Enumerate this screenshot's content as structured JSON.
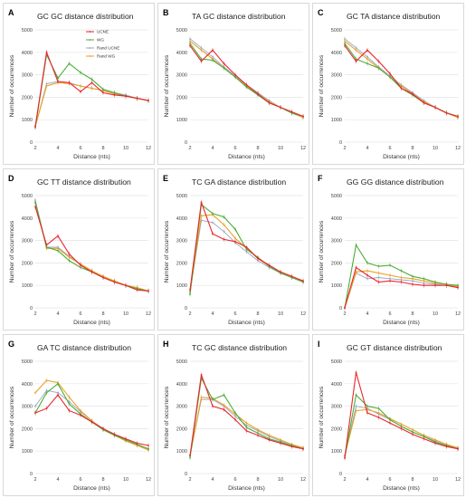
{
  "chart_data": [
    {
      "panel": "A",
      "type": "line",
      "title": "GC GC distance distribution",
      "xlabel": "Distance (nts)",
      "ylabel": "Number of occurrences",
      "xlim": [
        2,
        12
      ],
      "ylim": [
        0,
        5000
      ],
      "grid": true,
      "legend": "top-center",
      "x": [
        2,
        3,
        4,
        5,
        6,
        7,
        8,
        9,
        10,
        11,
        12
      ],
      "series": [
        {
          "name": "UCNE",
          "color": "#e8262d",
          "values": [
            700,
            4000,
            2700,
            2650,
            2250,
            2650,
            2200,
            2100,
            2050,
            1950,
            1850
          ]
        },
        {
          "name": "WG",
          "color": "#4cad3a",
          "values": [
            650,
            3900,
            2850,
            3500,
            3100,
            2800,
            2350,
            2200,
            2050,
            1950,
            1850
          ]
        },
        {
          "name": "Rand UCNE",
          "color": "#9aa5c3",
          "values": [
            700,
            2600,
            2700,
            2650,
            2500,
            2400,
            2300,
            2200,
            2100,
            1950,
            1850
          ]
        },
        {
          "name": "Rand WG",
          "color": "#e9a227",
          "values": [
            700,
            2500,
            2650,
            2600,
            2500,
            2400,
            2300,
            2150,
            2050,
            1950,
            1850
          ]
        }
      ]
    },
    {
      "panel": "B",
      "type": "line",
      "title": "TA GC distance distribution",
      "xlabel": "Distance (nts)",
      "ylabel": "Number of occurrences",
      "xlim": [
        2,
        12
      ],
      "ylim": [
        0,
        5000
      ],
      "grid": true,
      "x": [
        2,
        3,
        4,
        5,
        6,
        7,
        8,
        9,
        10,
        11,
        12
      ],
      "series": [
        {
          "name": "UCNE",
          "color": "#e8262d",
          "values": [
            4300,
            3600,
            4100,
            3500,
            3000,
            2550,
            2150,
            1750,
            1550,
            1350,
            1150
          ]
        },
        {
          "name": "WG",
          "color": "#4cad3a",
          "values": [
            4400,
            3700,
            3650,
            3300,
            2900,
            2450,
            2100,
            1750,
            1550,
            1300,
            1150
          ]
        },
        {
          "name": "Rand UCNE",
          "color": "#9aa5c3",
          "values": [
            4600,
            4200,
            3800,
            3350,
            2950,
            2550,
            2200,
            1850,
            1550,
            1300,
            1100
          ]
        },
        {
          "name": "Rand WG",
          "color": "#e9a227",
          "values": [
            4500,
            4100,
            3700,
            3300,
            2900,
            2500,
            2150,
            1800,
            1550,
            1300,
            1100
          ]
        }
      ]
    },
    {
      "panel": "C",
      "type": "line",
      "title": "GC TA distance distribution",
      "xlabel": "Distance (nts)",
      "ylabel": "Number of occurrences",
      "xlim": [
        2,
        12
      ],
      "ylim": [
        0,
        5000
      ],
      "grid": true,
      "x": [
        2,
        3,
        4,
        5,
        6,
        7,
        8,
        9,
        10,
        11,
        12
      ],
      "series": [
        {
          "name": "UCNE",
          "color": "#e8262d",
          "values": [
            4300,
            3600,
            4100,
            3600,
            3050,
            2400,
            2150,
            1750,
            1550,
            1300,
            1150
          ]
        },
        {
          "name": "WG",
          "color": "#4cad3a",
          "values": [
            4400,
            3700,
            3500,
            3300,
            2900,
            2400,
            2100,
            1750,
            1550,
            1300,
            1150
          ]
        },
        {
          "name": "Rand UCNE",
          "color": "#9aa5c3",
          "values": [
            4600,
            4200,
            3800,
            3350,
            2950,
            2550,
            2200,
            1850,
            1550,
            1300,
            1100
          ]
        },
        {
          "name": "Rand WG",
          "color": "#e9a227",
          "values": [
            4500,
            4100,
            3700,
            3300,
            2900,
            2500,
            2150,
            1800,
            1550,
            1300,
            1100
          ]
        }
      ]
    },
    {
      "panel": "D",
      "type": "line",
      "title": "GC TT distance distribution",
      "xlabel": "Distance (nts)",
      "ylabel": "Number of occurrences",
      "xlim": [
        2,
        12
      ],
      "ylim": [
        0,
        5000
      ],
      "grid": true,
      "x": [
        2,
        3,
        4,
        5,
        6,
        7,
        8,
        9,
        10,
        11,
        12
      ],
      "series": [
        {
          "name": "UCNE",
          "color": "#e8262d",
          "values": [
            4500,
            2800,
            3200,
            2400,
            1900,
            1600,
            1350,
            1150,
            1000,
            800,
            750
          ]
        },
        {
          "name": "WG",
          "color": "#4cad3a",
          "values": [
            4700,
            2700,
            2550,
            2100,
            1800,
            1600,
            1350,
            1150,
            1000,
            850,
            750
          ]
        },
        {
          "name": "Rand UCNE",
          "color": "#9aa5c3",
          "values": [
            4800,
            2700,
            2700,
            2300,
            1950,
            1650,
            1400,
            1200,
            1000,
            900,
            750
          ]
        },
        {
          "name": "Rand WG",
          "color": "#e9a227",
          "values": [
            4700,
            2650,
            2650,
            2250,
            1950,
            1650,
            1400,
            1200,
            1000,
            900,
            750
          ]
        }
      ]
    },
    {
      "panel": "E",
      "type": "line",
      "title": "TC GA distance distribution",
      "xlabel": "Distance (nts)",
      "ylabel": "Number of occurrences",
      "xlim": [
        2,
        12
      ],
      "ylim": [
        0,
        5000
      ],
      "grid": true,
      "x": [
        2,
        3,
        4,
        5,
        6,
        7,
        8,
        9,
        10,
        11,
        12
      ],
      "series": [
        {
          "name": "UCNE",
          "color": "#e8262d",
          "values": [
            800,
            4700,
            3300,
            3050,
            2950,
            2700,
            2200,
            1900,
            1600,
            1400,
            1200
          ]
        },
        {
          "name": "WG",
          "color": "#4cad3a",
          "values": [
            600,
            4600,
            4200,
            4050,
            3500,
            2600,
            2250,
            1850,
            1550,
            1350,
            1150
          ]
        },
        {
          "name": "Rand UCNE",
          "color": "#9aa5c3",
          "values": [
            700,
            3900,
            3800,
            3400,
            2900,
            2500,
            2100,
            1800,
            1550,
            1350,
            1150
          ]
        },
        {
          "name": "Rand WG",
          "color": "#e9a227",
          "values": [
            700,
            4100,
            4150,
            3700,
            3100,
            2650,
            2200,
            1850,
            1600,
            1400,
            1200
          ]
        }
      ]
    },
    {
      "panel": "F",
      "type": "line",
      "title": "GG GG distance distribution",
      "xlabel": "Distance (nts)",
      "ylabel": "Number of occurrences",
      "xlim": [
        2,
        12
      ],
      "ylim": [
        0,
        5000
      ],
      "grid": true,
      "x": [
        2,
        3,
        4,
        5,
        6,
        7,
        8,
        9,
        10,
        11,
        12
      ],
      "series": [
        {
          "name": "UCNE",
          "color": "#e8262d",
          "values": [
            0,
            1800,
            1450,
            1150,
            1200,
            1150,
            1050,
            1000,
            1000,
            1000,
            900
          ]
        },
        {
          "name": "WG",
          "color": "#4cad3a",
          "values": [
            0,
            2800,
            2000,
            1850,
            1900,
            1650,
            1400,
            1300,
            1150,
            1050,
            1000
          ]
        },
        {
          "name": "Rand UCNE",
          "color": "#9aa5c3",
          "values": [
            0,
            1550,
            1300,
            1350,
            1300,
            1250,
            1200,
            1100,
            1050,
            1000,
            950
          ]
        },
        {
          "name": "Rand WG",
          "color": "#e9a227",
          "values": [
            0,
            1600,
            1650,
            1550,
            1450,
            1350,
            1300,
            1200,
            1100,
            1050,
            950
          ]
        }
      ]
    },
    {
      "panel": "G",
      "type": "line",
      "title": "GA TC distance distribution",
      "xlabel": "Distance (nts)",
      "ylabel": "Number of occurrences",
      "xlim": [
        2,
        12
      ],
      "ylim": [
        0,
        5000
      ],
      "grid": true,
      "x": [
        2,
        3,
        4,
        5,
        6,
        7,
        8,
        9,
        10,
        11,
        12
      ],
      "series": [
        {
          "name": "UCNE",
          "color": "#e8262d",
          "values": [
            2700,
            2900,
            3500,
            2800,
            2600,
            2300,
            2000,
            1750,
            1550,
            1350,
            1250
          ]
        },
        {
          "name": "WG",
          "color": "#4cad3a",
          "values": [
            2700,
            3600,
            4000,
            3100,
            2650,
            2300,
            1950,
            1700,
            1500,
            1300,
            1100
          ]
        },
        {
          "name": "Rand UCNE",
          "color": "#9aa5c3",
          "values": [
            3000,
            3700,
            3600,
            3200,
            2750,
            2350,
            2000,
            1750,
            1500,
            1300,
            1100
          ]
        },
        {
          "name": "Rand WG",
          "color": "#e9a227",
          "values": [
            3600,
            4150,
            4050,
            3400,
            2800,
            2350,
            1950,
            1700,
            1450,
            1250,
            1050
          ]
        }
      ]
    },
    {
      "panel": "H",
      "type": "line",
      "title": "TC GC distance distribution",
      "xlabel": "Distance (nts)",
      "ylabel": "Number of occurrences",
      "xlim": [
        2,
        12
      ],
      "ylim": [
        0,
        5000
      ],
      "grid": true,
      "x": [
        2,
        3,
        4,
        5,
        6,
        7,
        8,
        9,
        10,
        11,
        12
      ],
      "series": [
        {
          "name": "UCNE",
          "color": "#e8262d",
          "values": [
            800,
            4400,
            3000,
            2850,
            2400,
            1900,
            1700,
            1500,
            1350,
            1200,
            1100
          ]
        },
        {
          "name": "WG",
          "color": "#4cad3a",
          "values": [
            700,
            4250,
            3300,
            3500,
            2700,
            2050,
            1800,
            1550,
            1400,
            1250,
            1100
          ]
        },
        {
          "name": "Rand UCNE",
          "color": "#9aa5c3",
          "values": [
            800,
            3300,
            3300,
            3000,
            2550,
            2150,
            1900,
            1650,
            1450,
            1250,
            1100
          ]
        },
        {
          "name": "Rand WG",
          "color": "#e9a227",
          "values": [
            800,
            3400,
            3350,
            3050,
            2650,
            2250,
            1950,
            1700,
            1500,
            1300,
            1150
          ]
        }
      ]
    },
    {
      "panel": "I",
      "type": "line",
      "title": "GC GT distance distribution",
      "xlabel": "Distance (nts)",
      "ylabel": "Number of occurrences",
      "xlim": [
        2,
        12
      ],
      "ylim": [
        0,
        5000
      ],
      "grid": true,
      "x": [
        2,
        3,
        4,
        5,
        6,
        7,
        8,
        9,
        10,
        11,
        12
      ],
      "series": [
        {
          "name": "UCNE",
          "color": "#e8262d",
          "values": [
            700,
            4500,
            2700,
            2500,
            2250,
            2000,
            1750,
            1550,
            1350,
            1200,
            1100
          ]
        },
        {
          "name": "WG",
          "color": "#4cad3a",
          "values": [
            700,
            3500,
            3000,
            2900,
            2400,
            2100,
            1850,
            1650,
            1400,
            1250,
            1100
          ]
        },
        {
          "name": "Rand UCNE",
          "color": "#9aa5c3",
          "values": [
            800,
            3000,
            2900,
            2650,
            2400,
            2100,
            1850,
            1650,
            1450,
            1250,
            1100
          ]
        },
        {
          "name": "Rand WG",
          "color": "#e9a227",
          "values": [
            800,
            2800,
            2850,
            2700,
            2450,
            2200,
            1950,
            1700,
            1500,
            1300,
            1150
          ]
        }
      ]
    }
  ],
  "yticks": [
    0,
    1000,
    2000,
    3000,
    4000,
    5000
  ],
  "xticks": [
    2,
    4,
    6,
    8,
    10,
    12
  ]
}
